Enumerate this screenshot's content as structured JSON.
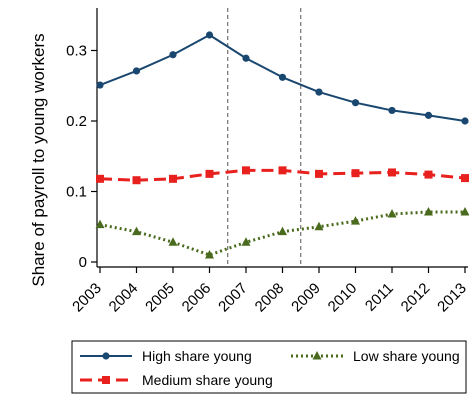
{
  "chart_data": {
    "type": "line",
    "title": "",
    "xlabel": "",
    "ylabel": "Share of payroll to young workers",
    "x": [
      "2003",
      "2004",
      "2005",
      "2006",
      "2007",
      "2008",
      "2009",
      "2010",
      "2011",
      "2012",
      "2013"
    ],
    "ylim": [
      0,
      0.35
    ],
    "yticks": [
      0,
      0.1,
      0.2,
      0.3
    ],
    "ytick_labels": [
      "0",
      "0.1",
      "0.2",
      "0.3"
    ],
    "vlines": [
      2006.5,
      2008.5
    ],
    "grid": false,
    "legend_position": "bottom",
    "series": [
      {
        "name": "High share young",
        "values": [
          0.251,
          0.271,
          0.294,
          0.322,
          0.289,
          0.262,
          0.241,
          0.226,
          0.215,
          0.208,
          0.2
        ],
        "color": "#1a476f",
        "marker": "circle",
        "line_style": "solid"
      },
      {
        "name": "Low share young",
        "values": [
          0.053,
          0.043,
          0.028,
          0.01,
          0.028,
          0.043,
          0.05,
          0.058,
          0.068,
          0.071,
          0.071
        ],
        "color": "#4a6b1e",
        "marker": "triangle",
        "line_style": "dotted"
      },
      {
        "name": "Medium share young",
        "values": [
          0.118,
          0.116,
          0.118,
          0.125,
          0.13,
          0.13,
          0.125,
          0.126,
          0.127,
          0.124,
          0.119
        ],
        "color": "#e8201e",
        "marker": "square",
        "line_style": "dashed"
      }
    ]
  }
}
